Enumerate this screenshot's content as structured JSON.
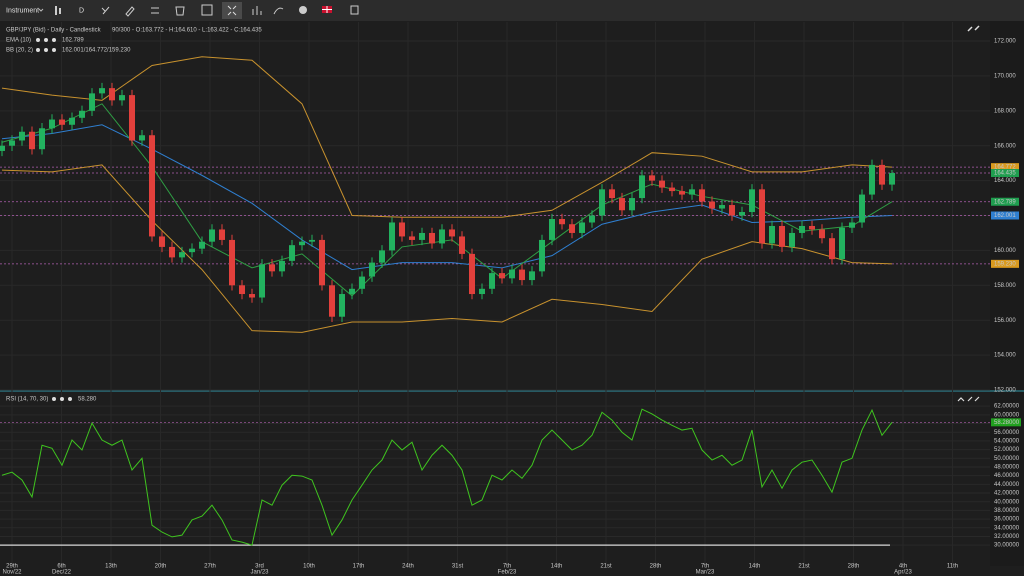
{
  "toolbar": {
    "instrument": "Instrument",
    "interval": "D"
  },
  "chart_data": [
    {
      "type": "candlestick",
      "title": "GBP/JPY (Bid) - Daily - Candlestick",
      "subtitle": "90/300 - O:163.772 - H:164.610 - L:163.422 - C:164.435",
      "up_color": "#22b25f",
      "down_color": "#e2403c",
      "open": [
        165.7,
        166.0,
        166.3,
        166.8,
        165.8,
        167.0,
        167.5,
        167.2,
        167.6,
        168.0,
        169.0,
        169.3,
        168.6,
        168.9,
        166.3,
        166.6,
        160.8,
        160.2,
        159.6,
        159.9,
        160.1,
        160.5,
        161.2,
        160.6,
        158.0,
        157.5,
        157.3,
        159.2,
        158.8,
        159.4,
        160.3,
        160.5,
        160.6,
        158.0,
        156.2,
        157.5,
        157.8,
        158.5,
        159.3,
        160.0,
        161.6,
        160.8,
        160.6,
        161.0,
        160.4,
        161.2,
        160.8,
        159.8,
        157.5,
        157.8,
        158.7,
        158.4,
        158.9,
        158.3,
        158.8,
        160.6,
        161.8,
        161.5,
        161.0,
        161.6,
        162.0,
        163.5,
        163.0,
        162.3,
        163.0,
        164.3,
        164.0,
        163.6,
        163.4,
        163.2,
        163.5,
        162.8,
        162.4,
        162.6,
        162.0,
        162.2,
        163.5,
        160.4,
        161.4,
        160.2,
        161.0,
        161.4,
        161.2,
        160.7,
        159.5,
        161.3,
        161.6,
        163.2,
        164.9,
        163.772
      ],
      "high": [
        166.3,
        166.6,
        167.1,
        167.1,
        167.3,
        167.8,
        167.8,
        167.9,
        168.3,
        169.3,
        169.6,
        169.6,
        169.2,
        169.2,
        166.9,
        166.9,
        161.1,
        160.5,
        160.2,
        160.4,
        160.8,
        161.5,
        161.5,
        160.9,
        158.3,
        157.8,
        159.5,
        159.5,
        159.7,
        160.6,
        160.8,
        160.9,
        160.9,
        158.3,
        157.8,
        158.1,
        158.8,
        159.6,
        160.3,
        161.9,
        161.9,
        161.1,
        161.3,
        161.3,
        161.5,
        161.5,
        161.1,
        160.1,
        158.1,
        159.0,
        159.0,
        159.2,
        159.2,
        159.1,
        160.9,
        162.1,
        162.1,
        161.8,
        161.9,
        162.3,
        163.8,
        163.8,
        163.3,
        163.3,
        164.6,
        164.6,
        164.3,
        163.9,
        163.7,
        163.8,
        163.8,
        163.1,
        162.9,
        162.9,
        162.5,
        163.8,
        163.8,
        161.7,
        161.7,
        161.3,
        161.7,
        161.7,
        161.5,
        161.0,
        161.6,
        161.9,
        163.5,
        165.2,
        165.2,
        164.61
      ],
      "low": [
        165.4,
        165.7,
        166.0,
        165.5,
        165.5,
        166.7,
        166.9,
        166.9,
        167.3,
        167.7,
        168.7,
        168.3,
        168.3,
        166.0,
        166.0,
        160.5,
        159.9,
        159.3,
        159.3,
        159.6,
        159.8,
        160.2,
        160.3,
        157.7,
        157.2,
        157.0,
        157.0,
        158.5,
        158.5,
        159.1,
        160.0,
        160.2,
        157.7,
        155.9,
        155.9,
        157.2,
        157.5,
        158.2,
        159.0,
        159.7,
        160.5,
        160.3,
        160.3,
        160.1,
        160.1,
        160.5,
        159.5,
        157.2,
        157.2,
        157.5,
        158.1,
        158.1,
        158.0,
        158.0,
        158.5,
        160.3,
        161.2,
        160.7,
        160.7,
        161.3,
        161.7,
        162.7,
        162.0,
        162.0,
        162.7,
        163.7,
        163.3,
        163.1,
        162.9,
        162.9,
        162.5,
        162.1,
        162.1,
        161.7,
        161.7,
        161.9,
        160.1,
        160.1,
        159.9,
        159.9,
        160.7,
        160.9,
        160.4,
        159.2,
        159.2,
        161.0,
        161.3,
        162.9,
        163.472,
        163.422
      ],
      "close": [
        166.0,
        166.3,
        166.8,
        165.8,
        167.0,
        167.5,
        167.2,
        167.6,
        168.0,
        169.0,
        169.3,
        168.6,
        168.9,
        166.3,
        166.6,
        160.8,
        160.2,
        159.6,
        159.9,
        160.1,
        160.5,
        161.2,
        160.6,
        158.0,
        157.5,
        157.3,
        159.2,
        158.8,
        159.4,
        160.3,
        160.5,
        160.6,
        158.0,
        156.2,
        157.5,
        157.8,
        158.5,
        159.3,
        160.0,
        161.6,
        160.8,
        160.6,
        161.0,
        160.4,
        161.2,
        160.8,
        159.8,
        157.5,
        157.8,
        158.7,
        158.4,
        158.9,
        158.3,
        158.8,
        160.6,
        161.8,
        161.5,
        161.0,
        161.6,
        162.0,
        163.5,
        163.0,
        162.3,
        163.0,
        164.3,
        164.0,
        163.6,
        163.4,
        163.2,
        163.5,
        162.8,
        162.4,
        162.6,
        162.0,
        162.2,
        163.5,
        160.4,
        161.4,
        160.2,
        161.0,
        161.4,
        161.2,
        160.7,
        159.5,
        161.3,
        161.6,
        163.2,
        164.9,
        163.772,
        164.435
      ],
      "x_labels": [
        "29th",
        "6th",
        "13th",
        "20th",
        "27th",
        "3rd",
        "10th",
        "17th",
        "24th",
        "31st",
        "7th",
        "14th",
        "21st",
        "28th",
        "7th",
        "14th",
        "21st",
        "28th",
        "4th",
        "11th"
      ],
      "x_label_months": [
        "Nov/22",
        "Dec/22",
        null,
        null,
        null,
        "Jan/23",
        null,
        null,
        null,
        null,
        "Feb/23",
        null,
        null,
        null,
        "Mar/23",
        null,
        null,
        null,
        "Apr/23",
        null
      ],
      "ylim": [
        152,
        173.09
      ],
      "yticks": [
        {
          "value": 152,
          "label": "152.000"
        },
        {
          "value": 154,
          "label": "154.000"
        },
        {
          "value": 156,
          "label": "156.000"
        },
        {
          "value": 158,
          "label": "158.000"
        },
        {
          "value": 160,
          "label": "160.000"
        },
        {
          "value": 162,
          "label": "162.000"
        },
        {
          "value": 164,
          "label": "164.000"
        },
        {
          "value": 166,
          "label": "166.000"
        },
        {
          "value": 168,
          "label": "168.000"
        },
        {
          "value": 170,
          "label": "170.000"
        },
        {
          "value": 172,
          "label": "172.000"
        }
      ],
      "ema": {
        "label": "EMA (10)",
        "reading": "162.789",
        "color": "#2f9e44",
        "values": [
          166.2,
          167.0,
          168.4,
          164.8,
          160.5,
          159.0,
          159.8,
          157.4,
          160.2,
          160.6,
          158.4,
          160.5,
          162.6,
          163.8,
          163.1,
          162.6,
          161.1,
          161.4,
          162.789
        ]
      },
      "bb": {
        "label": "BB (20, 2)",
        "reading": "162.001/164.772/159.230",
        "band_color": "#c8922e",
        "middle_color": "#2f7fd0",
        "upper": [
          169.3,
          168.9,
          168.6,
          170.6,
          171.1,
          170.9,
          168.4,
          162.0,
          161.9,
          161.9,
          161.9,
          162.3,
          163.9,
          165.6,
          165.4,
          164.5,
          164.5,
          164.9,
          164.772
        ],
        "middle": [
          166.4,
          166.7,
          167.2,
          165.8,
          164.3,
          162.7,
          160.6,
          158.9,
          159.3,
          159.3,
          159.0,
          159.7,
          161.5,
          162.2,
          162.6,
          161.6,
          161.7,
          161.9,
          162.001
        ],
        "lower": [
          164.6,
          164.5,
          164.9,
          161.7,
          158.9,
          155.4,
          155.3,
          155.9,
          155.9,
          156.1,
          155.9,
          157.2,
          156.9,
          156.5,
          159.5,
          160.5,
          160.1,
          159.3,
          159.23
        ]
      },
      "price_markers": {
        "values": [
          164.772,
          164.435,
          162.789,
          162.001,
          {
            "value": 159.23,
            "label": "159.230"
          }
        ],
        "colors": [
          "#d99a1e",
          "#1f9e4f",
          "#1f9e4f",
          "#2f7fd0",
          "#d99a1e"
        ]
      }
    },
    {
      "type": "line",
      "title": "RSI (14, 70, 30)",
      "reading": "58.280",
      "color": "#3fc41f",
      "values": [
        46.1,
        46.8,
        45.0,
        41.1,
        53.0,
        52.3,
        48.4,
        54.2,
        51.9,
        58.1,
        54.2,
        53.0,
        54.2,
        47.3,
        50.0,
        34.6,
        33.0,
        31.9,
        32.3,
        35.8,
        36.7,
        39.2,
        35.8,
        31.2,
        30.7,
        30.0,
        40.4,
        39.2,
        43.8,
        46.1,
        45.9,
        45.0,
        39.2,
        32.3,
        35.8,
        40.4,
        43.8,
        47.3,
        49.6,
        54.2,
        51.9,
        53.7,
        47.3,
        50.7,
        53.0,
        50.7,
        47.3,
        39.2,
        40.4,
        46.1,
        45.0,
        47.3,
        45.4,
        48.4,
        54.2,
        56.5,
        54.2,
        51.9,
        53.0,
        55.3,
        60.6,
        58.8,
        56.0,
        54.2,
        61.3,
        60.2,
        58.8,
        57.6,
        56.5,
        56.9,
        51.9,
        49.6,
        50.7,
        48.4,
        49.6,
        56.5,
        43.4,
        47.3,
        43.1,
        47.3,
        49.1,
        49.6,
        46.1,
        42.2,
        49.1,
        50.0,
        56.5,
        61.1,
        55.3,
        58.28
      ],
      "ylim": [
        25.2,
        64.8
      ],
      "yticks": [
        {
          "value": 30,
          "label": "30.00000"
        },
        {
          "value": 32,
          "label": "32.00000"
        },
        {
          "value": 34,
          "label": "34.00000"
        },
        {
          "value": 36,
          "label": "36.00000"
        },
        {
          "value": 38,
          "label": "38.00000"
        },
        {
          "value": 40,
          "label": "40.00000"
        },
        {
          "value": 42,
          "label": "42.00000"
        },
        {
          "value": 44,
          "label": "44.00000"
        },
        {
          "value": 46,
          "label": "46.00000"
        },
        {
          "value": 48,
          "label": "48.00000"
        },
        {
          "value": 50,
          "label": "50.00000"
        },
        {
          "value": 52,
          "label": "52.00000"
        },
        {
          "value": 54,
          "label": "54.00000"
        },
        {
          "value": 56,
          "label": "56.00000"
        },
        {
          "value": 58,
          "label": "58.00000"
        },
        {
          "value": 60,
          "label": "60.00000"
        },
        {
          "value": 62,
          "label": "62.00000"
        }
      ],
      "level": 30,
      "marker": {
        "value": 58.28,
        "label": "58.28000"
      }
    }
  ]
}
